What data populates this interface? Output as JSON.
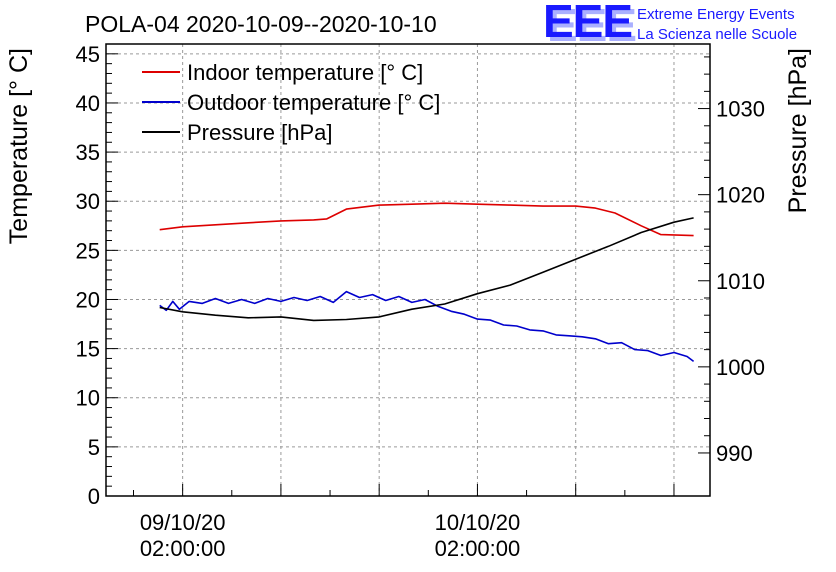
{
  "chart_data": {
    "type": "line",
    "title": "POLA-04 2020-10-09--2020-10-10",
    "ylabel": "Temperature [° C]",
    "y2label": "Pressure [hPa]",
    "ylim": [
      0,
      46
    ],
    "y2lim": [
      985,
      1037.5
    ],
    "xlim": [
      -1.17,
      8.05
    ],
    "yticks": [
      "0",
      "5",
      "10",
      "15",
      "20",
      "25",
      "30",
      "35",
      "40",
      "45"
    ],
    "y2ticks": [
      "990",
      "1000",
      "1010",
      "1020",
      "1030"
    ],
    "xticks": [
      {
        "x": 0,
        "line1": "09/10/20",
        "line2": "02:00:00"
      },
      {
        "x": 4.5,
        "line1": "10/10/20",
        "line2": "02:00:00"
      }
    ],
    "grid": true,
    "legend_position": "top-left",
    "series": [
      {
        "name": "Indoor temperature [° C]",
        "color": "#dd0000",
        "axis": "left",
        "x": [
          -0.35,
          0,
          0.5,
          1,
          1.5,
          2,
          2.2,
          2.5,
          3,
          3.5,
          4,
          4.5,
          5,
          5.5,
          6,
          6.3,
          6.6,
          7,
          7.3,
          7.8
        ],
        "y": [
          27.1,
          27.4,
          27.6,
          27.8,
          28.0,
          28.1,
          28.2,
          29.2,
          29.6,
          29.7,
          29.8,
          29.7,
          29.6,
          29.5,
          29.5,
          29.3,
          28.8,
          27.5,
          26.6,
          26.5
        ]
      },
      {
        "name": "Outdoor temperature [° C]",
        "color": "#0000cc",
        "axis": "left",
        "x": [
          -0.35,
          -0.25,
          -0.15,
          -0.05,
          0.1,
          0.3,
          0.5,
          0.7,
          0.9,
          1.1,
          1.3,
          1.5,
          1.7,
          1.9,
          2.1,
          2.3,
          2.5,
          2.7,
          2.9,
          3.1,
          3.3,
          3.5,
          3.7,
          3.9,
          4.1,
          4.3,
          4.5,
          4.7,
          4.9,
          5.1,
          5.3,
          5.5,
          5.7,
          5.9,
          6.1,
          6.3,
          6.5,
          6.7,
          6.9,
          7.1,
          7.3,
          7.5,
          7.7,
          7.8
        ],
        "y": [
          19.4,
          18.9,
          19.8,
          19.0,
          19.8,
          19.6,
          20.1,
          19.6,
          20.0,
          19.6,
          20.1,
          19.8,
          20.2,
          19.9,
          20.3,
          19.7,
          20.8,
          20.2,
          20.5,
          19.9,
          20.3,
          19.7,
          20.0,
          19.3,
          18.8,
          18.5,
          18.0,
          17.9,
          17.4,
          17.3,
          16.9,
          16.8,
          16.4,
          16.3,
          16.2,
          16.0,
          15.5,
          15.6,
          14.9,
          14.8,
          14.3,
          14.6,
          14.2,
          13.7
        ]
      },
      {
        "name": "Pressure [hPa]",
        "color": "#000000",
        "axis": "right",
        "x": [
          -0.35,
          0,
          0.5,
          1,
          1.5,
          2,
          2.5,
          3,
          3.5,
          4,
          4.5,
          5,
          5.5,
          6,
          6.5,
          7,
          7.5,
          7.8
        ],
        "y": [
          1006.9,
          1006.4,
          1006.0,
          1005.7,
          1005.8,
          1005.4,
          1005.5,
          1005.8,
          1006.7,
          1007.3,
          1008.5,
          1009.5,
          1011.0,
          1012.5,
          1014.0,
          1015.6,
          1016.8,
          1017.3
        ]
      }
    ]
  },
  "logo": {
    "letters": "EEE",
    "line1": "Extreme Energy Events",
    "line2": "La Scienza nelle Scuole"
  }
}
